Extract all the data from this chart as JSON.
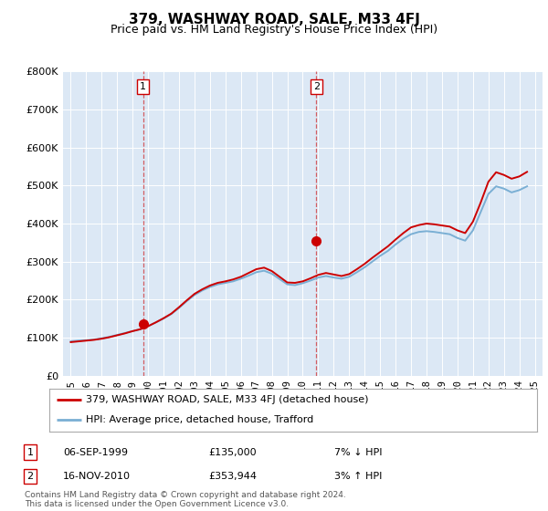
{
  "title": "379, WASHWAY ROAD, SALE, M33 4FJ",
  "subtitle": "Price paid vs. HM Land Registry's House Price Index (HPI)",
  "legend_line1": "379, WASHWAY ROAD, SALE, M33 4FJ (detached house)",
  "legend_line2": "HPI: Average price, detached house, Trafford",
  "annotation1_label": "1",
  "annotation1_date": "06-SEP-1999",
  "annotation1_price": "£135,000",
  "annotation1_hpi": "7% ↓ HPI",
  "annotation1_year": 1999.67,
  "annotation1_value": 135000,
  "annotation2_label": "2",
  "annotation2_date": "16-NOV-2010",
  "annotation2_price": "£353,944",
  "annotation2_hpi": "3% ↑ HPI",
  "annotation2_year": 2010.88,
  "annotation2_value": 353944,
  "footer": "Contains HM Land Registry data © Crown copyright and database right 2024.\nThis data is licensed under the Open Government Licence v3.0.",
  "line1_color": "#cc0000",
  "line2_color": "#7aafd4",
  "background_color": "#dce8f5",
  "ylim": [
    0,
    800000
  ],
  "xlim_start": 1994.5,
  "xlim_end": 2025.5,
  "hpi_x": [
    1995.0,
    1995.5,
    1996.0,
    1996.5,
    1997.0,
    1997.5,
    1998.0,
    1998.5,
    1999.0,
    1999.5,
    2000.0,
    2000.5,
    2001.0,
    2001.5,
    2002.0,
    2002.5,
    2003.0,
    2003.5,
    2004.0,
    2004.5,
    2005.0,
    2005.5,
    2006.0,
    2006.5,
    2007.0,
    2007.5,
    2008.0,
    2008.5,
    2009.0,
    2009.5,
    2010.0,
    2010.5,
    2011.0,
    2011.5,
    2012.0,
    2012.5,
    2013.0,
    2013.5,
    2014.0,
    2014.5,
    2015.0,
    2015.5,
    2016.0,
    2016.5,
    2017.0,
    2017.5,
    2018.0,
    2018.5,
    2019.0,
    2019.5,
    2020.0,
    2020.5,
    2021.0,
    2021.5,
    2022.0,
    2022.5,
    2023.0,
    2023.5,
    2024.0,
    2024.5
  ],
  "hpi_y": [
    90000,
    92000,
    93000,
    95000,
    98000,
    102000,
    107000,
    112000,
    117000,
    122000,
    130000,
    140000,
    150000,
    162000,
    178000,
    196000,
    212000,
    224000,
    233000,
    240000,
    244000,
    248000,
    255000,
    263000,
    272000,
    276000,
    268000,
    254000,
    240000,
    238000,
    243000,
    250000,
    258000,
    262000,
    258000,
    255000,
    260000,
    272000,
    285000,
    300000,
    315000,
    328000,
    345000,
    360000,
    372000,
    378000,
    380000,
    378000,
    375000,
    372000,
    362000,
    355000,
    382000,
    430000,
    478000,
    498000,
    492000,
    482000,
    488000,
    498000
  ],
  "price_x": [
    1995.0,
    1995.5,
    1996.0,
    1996.5,
    1997.0,
    1997.5,
    1998.0,
    1998.5,
    1999.0,
    1999.5,
    2000.0,
    2000.5,
    2001.0,
    2001.5,
    2002.0,
    2002.5,
    2003.0,
    2003.5,
    2004.0,
    2004.5,
    2005.0,
    2005.5,
    2006.0,
    2006.5,
    2007.0,
    2007.5,
    2008.0,
    2008.5,
    2009.0,
    2009.5,
    2010.0,
    2010.5,
    2011.0,
    2011.5,
    2012.0,
    2012.5,
    2013.0,
    2013.5,
    2014.0,
    2014.5,
    2015.0,
    2015.5,
    2016.0,
    2016.5,
    2017.0,
    2017.5,
    2018.0,
    2018.5,
    2019.0,
    2019.5,
    2020.0,
    2020.5,
    2021.0,
    2021.5,
    2022.0,
    2022.5,
    2023.0,
    2023.5,
    2024.0,
    2024.5
  ],
  "price_y": [
    88000,
    90000,
    92000,
    94000,
    97000,
    101000,
    106000,
    111000,
    117000,
    122000,
    130000,
    140000,
    151000,
    163000,
    180000,
    198000,
    215000,
    227000,
    237000,
    244000,
    248000,
    253000,
    260000,
    270000,
    280000,
    284000,
    275000,
    260000,
    245000,
    244000,
    248000,
    256000,
    265000,
    270000,
    266000,
    262000,
    267000,
    280000,
    294000,
    310000,
    325000,
    340000,
    358000,
    375000,
    390000,
    396000,
    400000,
    398000,
    395000,
    392000,
    382000,
    375000,
    405000,
    455000,
    510000,
    535000,
    528000,
    518000,
    524000,
    536000
  ],
  "xtick_years": [
    1995,
    1996,
    1997,
    1998,
    1999,
    2000,
    2001,
    2002,
    2003,
    2004,
    2005,
    2006,
    2007,
    2008,
    2009,
    2010,
    2011,
    2012,
    2013,
    2014,
    2015,
    2016,
    2017,
    2018,
    2019,
    2020,
    2021,
    2022,
    2023,
    2024,
    2025
  ]
}
